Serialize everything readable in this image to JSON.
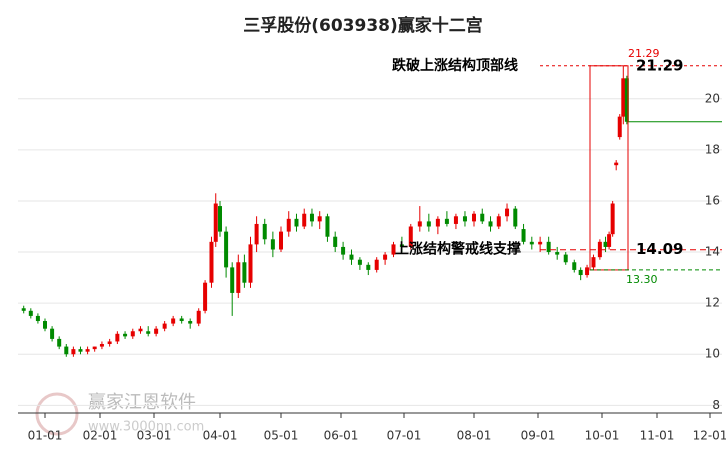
{
  "chart_data": {
    "type": "candlestick",
    "title": "三孚股份(603938)赢家十二宫",
    "xlim": [
      -14,
      340
    ],
    "xticks": [
      {
        "value": 0,
        "label": "01-01"
      },
      {
        "value": 31,
        "label": "02-01"
      },
      {
        "value": 59,
        "label": "03-01"
      },
      {
        "value": 90,
        "label": "04-01"
      },
      {
        "value": 120,
        "label": "05-01"
      },
      {
        "value": 151,
        "label": "06-01"
      },
      {
        "value": 181,
        "label": "07-01"
      },
      {
        "value": 212,
        "label": "08-01"
      },
      {
        "value": 243,
        "label": "09-01"
      },
      {
        "value": 273,
        "label": "10-01"
      },
      {
        "value": 304,
        "label": "11-01"
      },
      {
        "value": 334,
        "label": "12-01"
      }
    ],
    "ylim": [
      7.7,
      22.3
    ],
    "yticks": [
      8,
      10,
      12,
      14,
      16,
      18,
      20
    ],
    "up_color": "#e60000",
    "down_color": "#008a00",
    "x": [
      -12,
      -8,
      -4,
      0,
      4,
      8,
      12,
      16,
      20,
      24,
      28,
      32,
      36,
      40,
      44,
      48,
      52,
      56,
      60,
      64,
      68,
      72,
      76,
      80,
      83,
      86,
      88,
      90,
      93,
      96,
      99,
      102,
      105,
      108,
      112,
      116,
      120,
      124,
      128,
      132,
      136,
      140,
      144,
      148,
      152,
      156,
      160,
      164,
      168,
      172,
      176,
      180,
      184,
      188,
      192,
      196,
      200,
      204,
      208,
      212,
      216,
      220,
      224,
      228,
      232,
      236,
      240,
      244,
      248,
      252,
      256,
      260,
      263,
      266,
      269,
      272,
      275,
      277,
      279,
      281,
      283,
      285,
      287
    ],
    "open": [
      11.8,
      11.7,
      11.5,
      11.3,
      11.0,
      10.6,
      10.3,
      10.0,
      10.2,
      10.1,
      10.2,
      10.3,
      10.4,
      10.5,
      10.8,
      10.7,
      10.9,
      10.9,
      10.8,
      11.0,
      11.2,
      11.4,
      11.3,
      11.2,
      11.7,
      12.8,
      14.4,
      15.8,
      14.8,
      13.4,
      12.4,
      13.6,
      12.8,
      14.3,
      15.1,
      14.5,
      14.1,
      14.8,
      15.3,
      15.0,
      15.5,
      15.2,
      15.4,
      14.6,
      14.2,
      13.9,
      13.7,
      13.5,
      13.3,
      13.7,
      13.9,
      14.3,
      14.2,
      15.0,
      15.2,
      15.0,
      15.3,
      15.1,
      15.4,
      15.2,
      15.5,
      15.2,
      15.0,
      15.4,
      15.7,
      14.9,
      14.4,
      14.3,
      14.4,
      14.0,
      13.9,
      13.6,
      13.3,
      13.1,
      13.4,
      13.8,
      14.4,
      14.2,
      14.7,
      17.4,
      18.5,
      19.3,
      20.8
    ],
    "high": [
      11.9,
      11.8,
      11.6,
      11.4,
      11.1,
      10.7,
      10.4,
      10.3,
      10.3,
      10.3,
      10.3,
      10.5,
      10.6,
      10.9,
      10.9,
      11.0,
      11.1,
      11.1,
      11.1,
      11.3,
      11.5,
      11.5,
      11.4,
      11.8,
      12.9,
      14.6,
      16.3,
      16.0,
      15.0,
      13.6,
      13.9,
      13.9,
      14.6,
      15.4,
      15.3,
      14.8,
      15.0,
      15.6,
      15.5,
      15.7,
      15.7,
      15.6,
      15.5,
      14.8,
      14.4,
      14.1,
      13.8,
      13.6,
      13.8,
      14.0,
      14.4,
      14.6,
      15.1,
      15.8,
      15.5,
      15.4,
      15.6,
      15.5,
      15.6,
      15.6,
      15.7,
      15.4,
      15.5,
      15.9,
      15.8,
      15.1,
      14.6,
      14.6,
      14.6,
      14.2,
      14.0,
      13.7,
      13.4,
      13.5,
      13.9,
      14.5,
      14.6,
      14.8,
      16.0,
      17.6,
      19.4,
      21.29,
      20.9
    ],
    "low": [
      11.6,
      11.4,
      11.2,
      10.9,
      10.5,
      10.2,
      9.9,
      9.9,
      10.0,
      10.0,
      10.1,
      10.2,
      10.3,
      10.4,
      10.6,
      10.6,
      10.8,
      10.7,
      10.7,
      10.9,
      11.1,
      11.2,
      11.0,
      11.1,
      11.6,
      12.6,
      14.2,
      14.6,
      13.0,
      11.5,
      12.2,
      12.6,
      12.6,
      14.0,
      14.3,
      13.8,
      14.0,
      14.6,
      14.8,
      14.9,
      15.0,
      14.9,
      14.4,
      14.0,
      13.7,
      13.5,
      13.3,
      13.1,
      13.2,
      13.5,
      13.8,
      14.0,
      14.1,
      14.8,
      14.8,
      14.7,
      15.0,
      14.9,
      15.0,
      15.0,
      15.1,
      14.8,
      14.9,
      15.2,
      14.9,
      14.3,
      14.1,
      14.0,
      13.9,
      13.7,
      13.5,
      13.2,
      12.9,
      13.0,
      13.3,
      13.7,
      14.0,
      14.1,
      14.6,
      17.2,
      18.4,
      19.0,
      19.0
    ],
    "close": [
      11.7,
      11.5,
      11.3,
      11.0,
      10.6,
      10.3,
      10.0,
      10.2,
      10.1,
      10.2,
      10.3,
      10.4,
      10.5,
      10.8,
      10.7,
      10.9,
      11.0,
      10.8,
      11.0,
      11.2,
      11.4,
      11.3,
      11.2,
      11.7,
      12.8,
      14.4,
      15.9,
      14.8,
      13.4,
      12.4,
      13.6,
      12.8,
      14.3,
      15.1,
      14.5,
      14.1,
      14.8,
      15.3,
      15.0,
      15.5,
      15.2,
      15.4,
      14.6,
      14.2,
      13.9,
      13.7,
      13.5,
      13.3,
      13.7,
      13.9,
      14.3,
      14.2,
      15.0,
      15.2,
      15.0,
      15.3,
      15.1,
      15.4,
      15.2,
      15.5,
      15.2,
      15.0,
      15.4,
      15.7,
      15.0,
      14.4,
      14.3,
      14.4,
      14.0,
      13.9,
      13.6,
      13.3,
      13.1,
      13.4,
      13.8,
      14.4,
      14.2,
      14.7,
      15.9,
      17.5,
      19.3,
      20.8,
      19.1
    ],
    "annotations": [
      {
        "text": "跌破上涨结构顶部线",
        "value": 21.29
      },
      {
        "text": "上涨结构警戒线支撑",
        "value": 14.09
      }
    ],
    "low_mark": {
      "value": 13.3,
      "label": "13.30"
    },
    "watermark": {
      "name": "赢家江恩软件",
      "url": "www.3000nn.com"
    }
  }
}
